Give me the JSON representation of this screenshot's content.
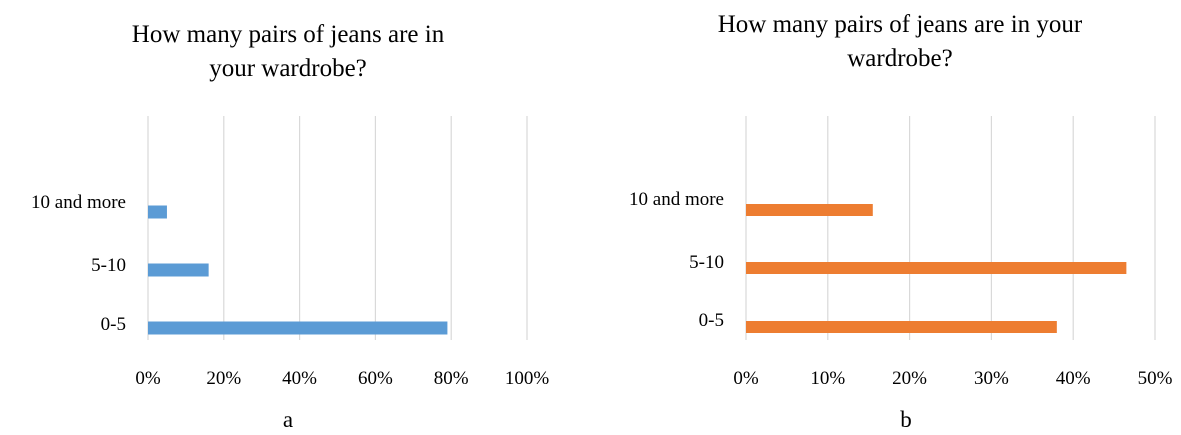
{
  "chart_data": [
    {
      "type": "bar",
      "orientation": "horizontal",
      "title_lines": [
        "How many pairs of jeans are in",
        "your wardrobe?"
      ],
      "categories": [
        "0-5",
        "5-10",
        "10 and more"
      ],
      "values": [
        79,
        16,
        5
      ],
      "value_unit": "%",
      "xlim": [
        0,
        100
      ],
      "xticks": [
        "0%",
        "20%",
        "40%",
        "60%",
        "80%",
        "100%"
      ],
      "grid": true,
      "legend": "none",
      "color": "#5B9BD5",
      "sublabel": "a"
    },
    {
      "type": "bar",
      "orientation": "horizontal",
      "title_lines": [
        "How many pairs of jeans are in your",
        "wardrobe?"
      ],
      "categories": [
        "0-5",
        "5-10",
        "10 and more"
      ],
      "values": [
        38,
        46.5,
        15.5
      ],
      "value_unit": "%",
      "xlim": [
        0,
        50
      ],
      "xticks": [
        "0%",
        "10%",
        "20%",
        "30%",
        "40%",
        "50%"
      ],
      "grid": true,
      "legend": "none",
      "color": "#ED7D31",
      "sublabel": "b"
    }
  ]
}
